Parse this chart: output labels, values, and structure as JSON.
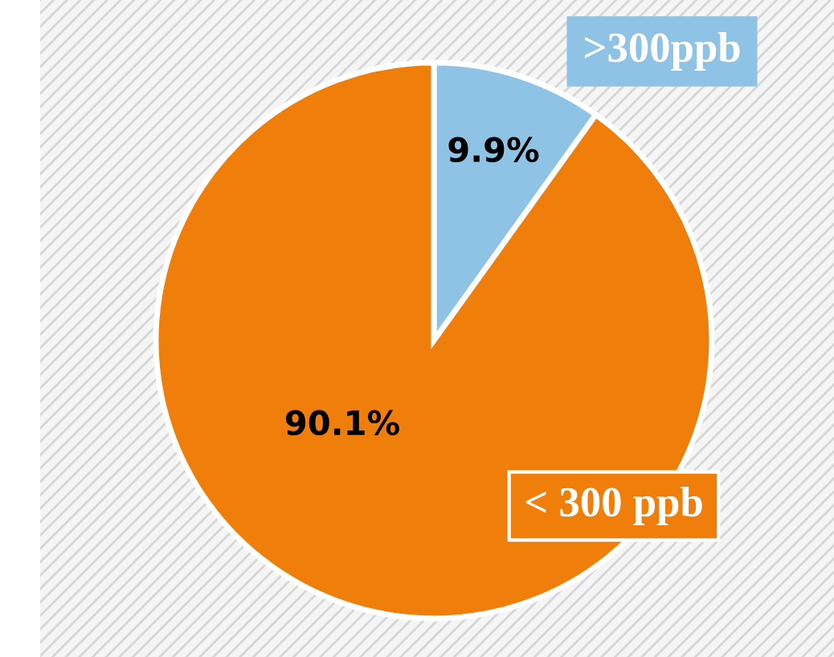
{
  "chart_data": {
    "type": "pie",
    "categories": [
      ">300ppb",
      "< 300 ppb"
    ],
    "values": [
      9.9,
      90.1
    ],
    "colors": [
      "#8ec3e6",
      "#ef7f0a"
    ],
    "value_labels": [
      "9.9%",
      "90.1%"
    ],
    "legend": false
  }
}
